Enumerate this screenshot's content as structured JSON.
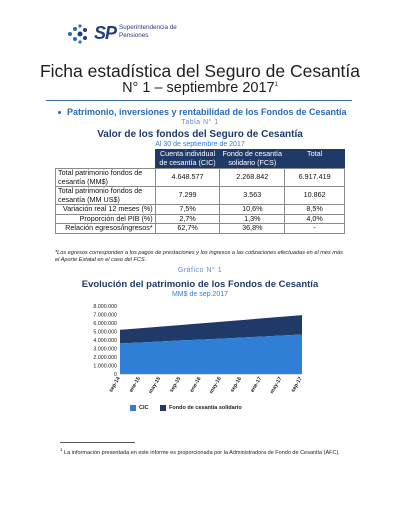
{
  "header": {
    "logo_abbr": "SP",
    "logo_line1": "Superintendencia de",
    "logo_line2": "Pensiones",
    "title": "Ficha estadística del Seguro de Cesantía",
    "subtitle": "N° 1 – septiembre 2017",
    "subtitle_sup": "1",
    "brand_color": "#1f3f7a"
  },
  "section": {
    "heading": "Patrimonio, inversiones y rentabilidad de los Fondos de Cesantía"
  },
  "table": {
    "label": "Tabla N° 1",
    "title": "Valor de los fondos del Seguro de Cesantía",
    "subtitle": "Al 30 de septiembre de 2017",
    "columns": [
      "",
      "Cuenta individual de cesantía (CIC)",
      "Fondo de cesantía solidario (FCS)",
      "Total"
    ],
    "rows": [
      {
        "label": "Total patrimonio fondos de cesantía (MM$)",
        "cic": "4.648.577",
        "fcs": "2.268.842",
        "total": "6.917.419"
      },
      {
        "label": "Total patrimonio fondos de cesantía (MM US$)",
        "cic": "7.299",
        "fcs": "3.563",
        "total": "10.862"
      },
      {
        "label": "Variación real 12 meses (%)",
        "cic": "7,5%",
        "fcs": "10,6%",
        "total": "8,5%"
      },
      {
        "label": "Proporción del PIB (%)",
        "cic": "2,7%",
        "fcs": "1,3%",
        "total": "4,0%"
      },
      {
        "label": "Relación egresos/ingresos*",
        "cic": "62,7%",
        "fcs": "36,8%",
        "total": "-"
      }
    ],
    "note": "*Los egresos corresponden a los pagos de prestaciones y los ingresos a las cotizaciones efectuadas en el mes más el Aporte Estatal en el caso del FCS."
  },
  "chart_data": {
    "type": "area",
    "label": "Gráfico N° 1",
    "title": "Evolución del patrimonio de los Fondos de Cesantía",
    "subtitle": "MM$ de sep.2017",
    "x": [
      "sep-14",
      "ene-15",
      "may-15",
      "sep-15",
      "ene-16",
      "may-16",
      "sep-16",
      "ene-17",
      "may-17",
      "sep-17"
    ],
    "series": [
      {
        "name": "CIC",
        "color": "#2f7fd6",
        "values": [
          3600000,
          3700000,
          3820000,
          3950000,
          4050000,
          4160000,
          4280000,
          4400000,
          4530000,
          4650000
        ]
      },
      {
        "name": "Fondo de cesantía solidario",
        "color": "#1f3a66",
        "values": [
          1600000,
          1680000,
          1750000,
          1820000,
          1900000,
          1980000,
          2060000,
          2140000,
          2200000,
          2270000
        ]
      }
    ],
    "stacked": true,
    "ylim": [
      0,
      8000000
    ],
    "yticks": [
      "0",
      "1.000.000",
      "2.000.000",
      "3.000.000",
      "4.000.000",
      "5.000.000",
      "6.000.000",
      "7.000.000",
      "8.000.000"
    ],
    "legend": "bottom"
  },
  "footnote": {
    "num": "1",
    "text": "La información presentada en este informe es proporcionada por la Administradora de Fondo de Cesantía (AFC)."
  }
}
